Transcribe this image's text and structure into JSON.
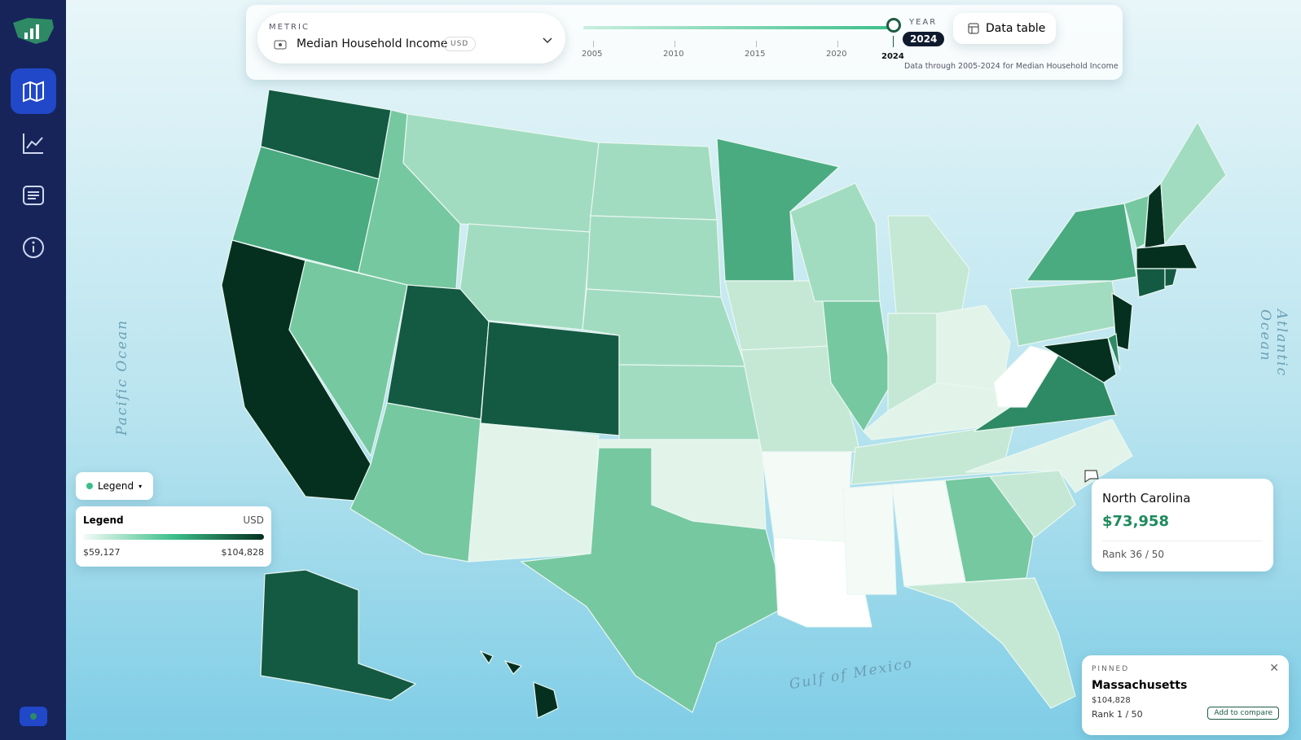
{
  "metric": {
    "label": "METRIC",
    "value": "Median Household Income",
    "unit": "USD"
  },
  "timeline": {
    "ticks": [
      "2005",
      "2010",
      "2015",
      "2020",
      "2024"
    ],
    "year_label": "YEAR",
    "year": "2024",
    "note": "Data through 2005-2024 for Median Household Income"
  },
  "data_table_button": "Data table",
  "ocean_labels": {
    "pacific": "Pacific Ocean",
    "atlantic": "Atlantic Ocean",
    "gulf": "Gulf of Mexico"
  },
  "legend_toggle": "Legend",
  "legend": {
    "title": "Legend",
    "unit": "USD",
    "min": "$59,127",
    "max": "$104,828"
  },
  "tooltip": {
    "state": "North Carolina",
    "value": "$73,958",
    "rank": "Rank 36 / 50"
  },
  "pinned": {
    "label": "PINNED",
    "state": "Massachusetts",
    "value": "$104,828",
    "rank": "Rank 1 / 50",
    "button": "Add to compare"
  }
}
